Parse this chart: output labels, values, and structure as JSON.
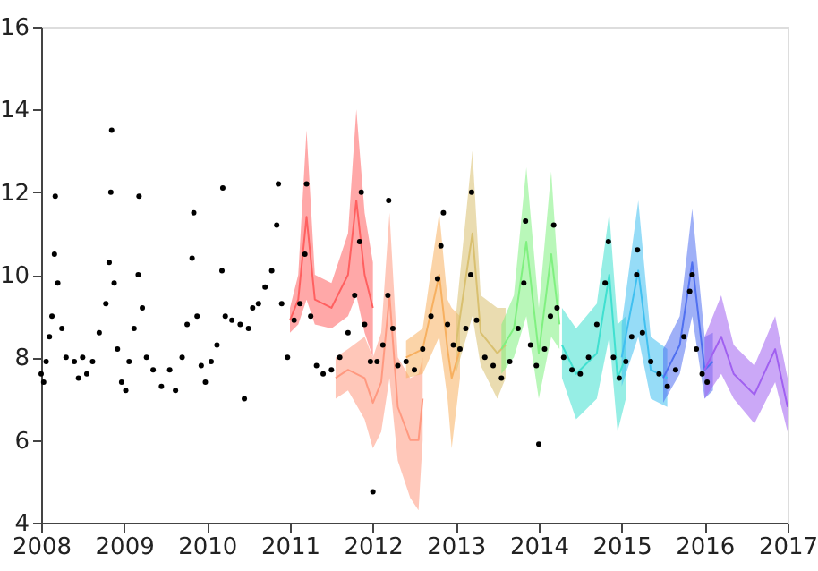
{
  "chart_data": {
    "type": "scatter",
    "xlim": [
      2008,
      2017
    ],
    "xticks": [
      2008,
      2009,
      2010,
      2011,
      2012,
      2013,
      2014,
      2015,
      2016,
      2017
    ],
    "ylim": [
      4,
      16
    ],
    "yticks": [
      4,
      6,
      8,
      10,
      12,
      14,
      16
    ],
    "grid": false,
    "series": [
      {
        "type": "line",
        "color": "#ff6060",
        "x": [
          2011.0,
          2011.1,
          2011.2,
          2011.3,
          2011.5,
          2011.7,
          2011.8,
          2011.9,
          2012.0
        ],
        "lower": [
          8.6,
          8.8,
          9.4,
          8.8,
          8.7,
          9.0,
          9.5,
          8.6,
          8.0
        ],
        "upper": [
          9.2,
          10.0,
          13.5,
          10.0,
          9.8,
          11.0,
          14.0,
          11.5,
          10.3
        ],
        "values": [
          8.9,
          9.4,
          11.4,
          9.4,
          9.2,
          10.0,
          11.8,
          10.0,
          9.2
        ]
      },
      {
        "type": "line",
        "color": "#ff9980",
        "x": [
          2011.55,
          2011.7,
          2011.9,
          2012.0,
          2012.1,
          2012.2,
          2012.3,
          2012.45,
          2012.55,
          2012.6
        ],
        "lower": [
          7.0,
          7.2,
          6.5,
          5.8,
          6.2,
          7.5,
          5.5,
          4.6,
          4.3,
          6.0
        ],
        "upper": [
          8.0,
          8.2,
          8.5,
          8.0,
          8.6,
          11.5,
          8.0,
          7.5,
          7.6,
          8.0
        ],
        "values": [
          7.5,
          7.7,
          7.5,
          6.9,
          7.4,
          9.5,
          6.8,
          6.0,
          6.0,
          7.0
        ]
      },
      {
        "type": "line",
        "color": "#f7b060",
        "x": [
          2012.4,
          2012.6,
          2012.8,
          2012.9,
          2012.95,
          2013.05
        ],
        "lower": [
          7.5,
          7.6,
          8.5,
          7.0,
          5.8,
          7.5
        ],
        "upper": [
          8.4,
          8.7,
          11.5,
          9.4,
          9.2,
          9.0
        ],
        "values": [
          8.0,
          8.2,
          10.0,
          8.2,
          7.5,
          8.2
        ]
      },
      {
        "type": "line",
        "color": "#d9c070",
        "x": [
          2013.0,
          2013.2,
          2013.3,
          2013.5,
          2013.6
        ],
        "lower": [
          7.6,
          9.0,
          7.8,
          7.0,
          7.5
        ],
        "upper": [
          9.0,
          13.0,
          9.5,
          9.2,
          9.2
        ],
        "values": [
          8.3,
          11.0,
          8.6,
          8.1,
          8.3
        ]
      },
      {
        "type": "line",
        "color": "#80f080",
        "x": [
          2013.55,
          2013.7,
          2013.85,
          2014.0,
          2014.15,
          2014.25
        ],
        "lower": [
          7.6,
          8.0,
          9.0,
          7.0,
          8.5,
          8.2
        ],
        "upper": [
          8.8,
          9.5,
          12.6,
          9.2,
          12.5,
          9.5
        ],
        "values": [
          8.2,
          8.7,
          10.8,
          8.1,
          10.5,
          8.8
        ]
      },
      {
        "type": "line",
        "color": "#40e0d0",
        "x": [
          2014.28,
          2014.45,
          2014.7,
          2014.85,
          2014.95,
          2015.05
        ],
        "lower": [
          7.5,
          6.5,
          7.0,
          8.5,
          6.2,
          7.0
        ],
        "upper": [
          9.2,
          8.7,
          9.3,
          11.5,
          8.8,
          9.0
        ],
        "values": [
          8.3,
          7.6,
          8.1,
          10.0,
          7.5,
          8.0
        ]
      },
      {
        "type": "line",
        "color": "#40c0f0",
        "x": [
          2015.0,
          2015.2,
          2015.35,
          2015.55
        ],
        "lower": [
          7.3,
          8.5,
          7.0,
          6.8
        ],
        "upper": [
          8.8,
          11.8,
          8.5,
          8.2
        ],
        "values": [
          8.0,
          10.1,
          7.7,
          7.5
        ]
      },
      {
        "type": "line",
        "color": "#5070f0",
        "x": [
          2015.5,
          2015.7,
          2015.85,
          2016.0,
          2016.1
        ],
        "lower": [
          6.9,
          7.6,
          9.0,
          7.0,
          7.2
        ],
        "upper": [
          8.2,
          9.0,
          11.6,
          8.5,
          8.6
        ],
        "values": [
          7.5,
          8.3,
          10.3,
          7.7,
          7.9
        ]
      },
      {
        "type": "line",
        "color": "#a060f0",
        "x": [
          2016.0,
          2016.2,
          2016.35,
          2016.6,
          2016.85,
          2017.0
        ],
        "lower": [
          7.0,
          7.6,
          7.0,
          6.4,
          7.4,
          6.2
        ],
        "upper": [
          8.5,
          9.5,
          8.3,
          7.8,
          9.0,
          7.5
        ],
        "values": [
          7.7,
          8.5,
          7.6,
          7.1,
          8.2,
          6.8
        ]
      },
      {
        "color": "#000000",
        "marker": "circle",
        "x": [
          2008.0,
          2008.03,
          2008.06,
          2008.1,
          2008.13,
          2008.16,
          2008.17,
          2008.2,
          2008.25,
          2008.3,
          2008.4,
          2008.45,
          2008.5,
          2008.55,
          2008.62,
          2008.7,
          2008.78,
          2008.82,
          2008.84,
          2008.85,
          2008.88,
          2008.92,
          2008.97,
          2009.02,
          2009.06,
          2009.12,
          2009.17,
          2009.18,
          2009.22,
          2009.27,
          2009.35,
          2009.45,
          2009.55,
          2009.62,
          2009.7,
          2009.76,
          2009.82,
          2009.84,
          2009.88,
          2009.93,
          2009.98,
          2010.05,
          2010.12,
          2010.18,
          2010.19,
          2010.22,
          2010.3,
          2010.4,
          2010.45,
          2010.5,
          2010.55,
          2010.62,
          2010.7,
          2010.78,
          2010.84,
          2010.86,
          2010.9,
          2010.97,
          2011.05,
          2011.12,
          2011.18,
          2011.2,
          2011.25,
          2011.32,
          2011.4,
          2011.5,
          2011.6,
          2011.7,
          2011.78,
          2011.84,
          2011.86,
          2011.9,
          2011.97,
          2012.0,
          2012.05,
          2012.12,
          2012.18,
          2012.19,
          2012.24,
          2012.3,
          2012.4,
          2012.5,
          2012.6,
          2012.7,
          2012.78,
          2012.82,
          2012.85,
          2012.9,
          2012.97,
          2013.05,
          2013.12,
          2013.18,
          2013.19,
          2013.25,
          2013.35,
          2013.45,
          2013.55,
          2013.65,
          2013.75,
          2013.82,
          2013.84,
          2013.9,
          2013.97,
          2014.0,
          2014.07,
          2014.14,
          2014.18,
          2014.22,
          2014.3,
          2014.4,
          2014.5,
          2014.6,
          2014.7,
          2014.8,
          2014.84,
          2014.9,
          2014.97,
          2015.05,
          2015.12,
          2015.18,
          2015.19,
          2015.25,
          2015.35,
          2015.45,
          2015.55,
          2015.65,
          2015.75,
          2015.82,
          2015.85,
          2015.9,
          2015.97,
          2016.03
        ],
        "values": [
          7.6,
          7.4,
          7.9,
          8.5,
          9.0,
          10.5,
          11.9,
          9.8,
          8.7,
          8.0,
          7.9,
          7.5,
          8.0,
          7.6,
          7.9,
          8.6,
          9.3,
          10.3,
          12.0,
          13.5,
          9.8,
          8.2,
          7.4,
          7.2,
          7.9,
          8.7,
          10.0,
          11.9,
          9.2,
          8.0,
          7.7,
          7.3,
          7.7,
          7.2,
          8.0,
          8.8,
          10.4,
          11.5,
          9.0,
          7.8,
          7.4,
          7.9,
          8.3,
          10.1,
          12.1,
          9.0,
          8.9,
          8.8,
          7.0,
          8.7,
          9.2,
          9.3,
          9.7,
          10.1,
          11.2,
          12.2,
          9.3,
          8.0,
          8.9,
          9.3,
          10.5,
          12.2,
          9.0,
          7.8,
          7.6,
          7.7,
          8.0,
          8.6,
          9.5,
          10.8,
          12.0,
          8.8,
          7.9,
          4.75,
          7.9,
          8.3,
          9.5,
          11.8,
          8.7,
          7.8,
          7.9,
          7.7,
          8.2,
          9.0,
          9.9,
          10.7,
          11.5,
          8.8,
          8.3,
          8.2,
          8.7,
          10.0,
          12.0,
          8.9,
          8.0,
          7.8,
          7.5,
          7.9,
          8.7,
          9.8,
          11.3,
          8.3,
          7.8,
          5.9,
          8.2,
          9.0,
          11.2,
          9.2,
          8.0,
          7.7,
          7.6,
          8.0,
          8.8,
          9.8,
          10.8,
          8.0,
          7.5,
          7.9,
          8.5,
          10.0,
          10.6,
          8.6,
          7.9,
          7.6,
          7.3,
          7.7,
          8.5,
          9.6,
          10.0,
          8.2,
          7.6,
          7.4
        ]
      }
    ]
  }
}
